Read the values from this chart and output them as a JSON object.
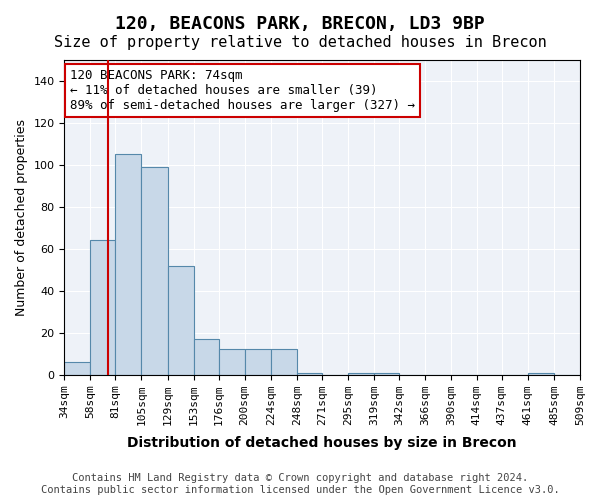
{
  "title": "120, BEACONS PARK, BRECON, LD3 9BP",
  "subtitle": "Size of property relative to detached houses in Brecon",
  "xlabel": "Distribution of detached houses by size in Brecon",
  "ylabel": "Number of detached properties",
  "bar_color": "#c8d8e8",
  "bar_edge_color": "#5588aa",
  "vline_color": "#cc0000",
  "vline_x": 74,
  "annotation_text": "120 BEACONS PARK: 74sqm\n← 11% of detached houses are smaller (39)\n89% of semi-detached houses are larger (327) →",
  "annotation_box_color": "white",
  "annotation_box_edge": "#cc0000",
  "bins": [
    34,
    58,
    81,
    105,
    129,
    153,
    176,
    200,
    224,
    248,
    271,
    295,
    319,
    342,
    366,
    390,
    414,
    437,
    461,
    485,
    509
  ],
  "bin_labels": [
    "34sqm",
    "58sqm",
    "81sqm",
    "105sqm",
    "129sqm",
    "153sqm",
    "176sqm",
    "200sqm",
    "224sqm",
    "248sqm",
    "271sqm",
    "295sqm",
    "319sqm",
    "342sqm",
    "366sqm",
    "390sqm",
    "414sqm",
    "437sqm",
    "461sqm",
    "485sqm",
    "509sqm"
  ],
  "bar_heights": [
    6,
    64,
    105,
    99,
    52,
    17,
    12,
    12,
    12,
    1,
    0,
    1,
    1,
    0,
    0,
    0,
    0,
    0,
    1,
    0
  ],
  "ylim": [
    0,
    150
  ],
  "yticks": [
    0,
    20,
    40,
    60,
    80,
    100,
    120,
    140
  ],
  "background_color": "#eef2f8",
  "grid_color": "#ffffff",
  "footer_text": "Contains HM Land Registry data © Crown copyright and database right 2024.\nContains public sector information licensed under the Open Government Licence v3.0.",
  "title_fontsize": 13,
  "subtitle_fontsize": 11,
  "xlabel_fontsize": 10,
  "ylabel_fontsize": 9,
  "tick_fontsize": 8,
  "annotation_fontsize": 9,
  "footer_fontsize": 7.5
}
